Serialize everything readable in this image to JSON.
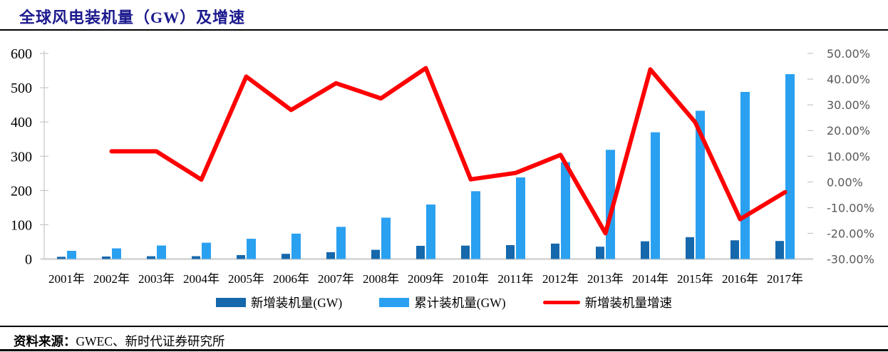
{
  "header": {
    "title": "全球风电装机量（GW）及增速"
  },
  "footer": {
    "label": "资料来源：",
    "value": "GWEC、新时代证券研究所"
  },
  "colors": {
    "title": "#1c1a8e",
    "bar_new": "#1568ac",
    "bar_cumulative": "#2aa0f0",
    "growth_line": "#fe0000",
    "axis_line": "#c6c6c6",
    "baseline": "#d9d9d9",
    "right_axis_text": "#595959",
    "rule": "#000000"
  },
  "chart_data": {
    "type": "bar",
    "title": "全球风电装机量（GW）及增速",
    "categories": [
      "2001年",
      "2002年",
      "2003年",
      "2004年",
      "2005年",
      "2006年",
      "2007年",
      "2008年",
      "2009年",
      "2010年",
      "2011年",
      "2012年",
      "2013年",
      "2014年",
      "2015年",
      "2016年",
      "2017年"
    ],
    "series": [
      {
        "key": "new-installed",
        "name": "新增装机量(GW)",
        "type": "bar",
        "axis": "left",
        "color": "#1568ac",
        "values": [
          6.5,
          7.3,
          8.1,
          8.2,
          11.5,
          15.2,
          19.9,
          26.9,
          38.5,
          39.1,
          40.6,
          45.0,
          36.0,
          51.7,
          63.8,
          54.6,
          52.6
        ]
      },
      {
        "key": "cumulative",
        "name": "累计装机量(GW)",
        "type": "bar",
        "axis": "left",
        "color": "#2aa0f0",
        "values": [
          23.9,
          31.1,
          39.4,
          47.6,
          59.1,
          74.1,
          93.9,
          120.7,
          159.0,
          197.9,
          238.1,
          282.8,
          318.7,
          369.9,
          432.7,
          487.7,
          539.6
        ]
      },
      {
        "key": "growth-rate",
        "name": "新增装机量增速",
        "type": "line",
        "axis": "right",
        "color": "#fe0000",
        "values": [
          null,
          11.9,
          11.9,
          0.9,
          41.0,
          28.0,
          38.4,
          32.5,
          44.3,
          1.0,
          3.5,
          10.5,
          -20.0,
          43.8,
          23.2,
          -14.5,
          -4.0
        ]
      }
    ],
    "left_axis": {
      "min": 0,
      "max": 600,
      "tick_labels": [
        "600",
        "500",
        "400",
        "300",
        "200",
        "100",
        "0"
      ]
    },
    "right_axis": {
      "min": -30,
      "max": 50,
      "tick_labels": [
        "50.00%",
        "40.00%",
        "30.00%",
        "20.00%",
        "10.00%",
        "0.00%",
        "-10.00%",
        "-20.00%",
        "-30.00%"
      ]
    },
    "grid": false,
    "legend_position": "bottom",
    "xlabel": "",
    "ylabel": ""
  }
}
